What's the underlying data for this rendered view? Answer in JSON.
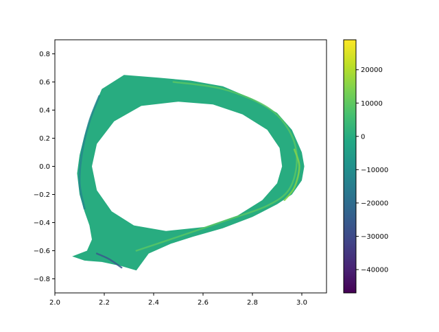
{
  "chart_data": {
    "type": "heatmap",
    "title": "",
    "xlabel": "",
    "ylabel": "",
    "xlim": [
      2.0,
      3.1
    ],
    "ylim": [
      -0.9,
      0.9
    ],
    "grid": false,
    "colormap": "viridis",
    "x_ticks": [
      {
        "value": 2.0,
        "label": "2.0"
      },
      {
        "value": 2.2,
        "label": "2.2"
      },
      {
        "value": 2.4,
        "label": "2.4"
      },
      {
        "value": 2.6,
        "label": "2.6"
      },
      {
        "value": 2.8,
        "label": "2.8"
      },
      {
        "value": 3.0,
        "label": "3.0"
      }
    ],
    "y_ticks": [
      {
        "value": -0.8,
        "label": "−0.8"
      },
      {
        "value": -0.6,
        "label": "−0.6"
      },
      {
        "value": -0.4,
        "label": "−0.4"
      },
      {
        "value": -0.2,
        "label": "−0.2"
      },
      {
        "value": 0.0,
        "label": "0.0"
      },
      {
        "value": 0.2,
        "label": "0.2"
      },
      {
        "value": 0.4,
        "label": "0.4"
      },
      {
        "value": 0.6,
        "label": "0.6"
      },
      {
        "value": 0.8,
        "label": "0.8"
      }
    ],
    "colorbar": {
      "range": [
        -47000,
        29000
      ],
      "ticks": [
        {
          "value": -40000,
          "label": "−40000"
        },
        {
          "value": -30000,
          "label": "−30000"
        },
        {
          "value": -20000,
          "label": "−20000"
        },
        {
          "value": -10000,
          "label": "−10000"
        },
        {
          "value": 0,
          "label": "0"
        },
        {
          "value": 10000,
          "label": "10000"
        },
        {
          "value": 20000,
          "label": "20000"
        }
      ]
    },
    "field_regions": {
      "background_value": 0,
      "outer_boundary": [
        [
          2.07,
          -0.64
        ],
        [
          2.13,
          -0.6
        ],
        [
          2.15,
          -0.52
        ],
        [
          2.14,
          -0.42
        ],
        [
          2.12,
          -0.32
        ],
        [
          2.1,
          -0.2
        ],
        [
          2.09,
          -0.05
        ],
        [
          2.1,
          0.08
        ],
        [
          2.12,
          0.22
        ],
        [
          2.15,
          0.38
        ],
        [
          2.19,
          0.55
        ],
        [
          2.28,
          0.65
        ],
        [
          2.42,
          0.63
        ],
        [
          2.55,
          0.61
        ],
        [
          2.68,
          0.57
        ],
        [
          2.8,
          0.48
        ],
        [
          2.9,
          0.38
        ],
        [
          2.96,
          0.26
        ],
        [
          3.0,
          0.1
        ],
        [
          3.01,
          0.0
        ],
        [
          3.0,
          -0.1
        ],
        [
          2.96,
          -0.2
        ],
        [
          2.9,
          -0.27
        ],
        [
          2.8,
          -0.36
        ],
        [
          2.68,
          -0.44
        ],
        [
          2.56,
          -0.5
        ],
        [
          2.47,
          -0.55
        ],
        [
          2.38,
          -0.62
        ],
        [
          2.33,
          -0.74
        ],
        [
          2.27,
          -0.71
        ],
        [
          2.19,
          -0.68
        ],
        [
          2.12,
          -0.67
        ]
      ],
      "inner_hole": [
        [
          2.15,
          0.0
        ],
        [
          2.17,
          0.16
        ],
        [
          2.24,
          0.32
        ],
        [
          2.35,
          0.43
        ],
        [
          2.5,
          0.46
        ],
        [
          2.64,
          0.44
        ],
        [
          2.76,
          0.37
        ],
        [
          2.86,
          0.26
        ],
        [
          2.91,
          0.13
        ],
        [
          2.92,
          0.0
        ],
        [
          2.9,
          -0.12
        ],
        [
          2.84,
          -0.24
        ],
        [
          2.74,
          -0.35
        ],
        [
          2.61,
          -0.43
        ],
        [
          2.45,
          -0.46
        ],
        [
          2.32,
          -0.42
        ],
        [
          2.23,
          -0.32
        ],
        [
          2.17,
          -0.17
        ]
      ],
      "features": [
        {
          "value": -12000,
          "points": [
            [
              2.12,
              -0.3
            ],
            [
              2.1,
              -0.12
            ],
            [
              2.11,
              0.1
            ],
            [
              2.14,
              0.32
            ],
            [
              2.18,
              0.5
            ]
          ]
        },
        {
          "value": -26000,
          "points": [
            [
              2.17,
              -0.62
            ],
            [
              2.22,
              -0.66
            ],
            [
              2.27,
              -0.72
            ]
          ]
        },
        {
          "value": 9000,
          "points": [
            [
              2.48,
              0.6
            ],
            [
              2.68,
              0.55
            ],
            [
              2.86,
              0.42
            ],
            [
              2.95,
              0.25
            ],
            [
              2.98,
              0.05
            ],
            [
              2.95,
              -0.16
            ],
            [
              2.86,
              -0.28
            ],
            [
              2.7,
              -0.38
            ],
            [
              2.5,
              -0.5
            ],
            [
              2.33,
              -0.6
            ]
          ]
        },
        {
          "value": 15000,
          "points": [
            [
              2.97,
              0.12
            ],
            [
              2.99,
              0.0
            ],
            [
              2.97,
              -0.15
            ],
            [
              2.93,
              -0.24
            ]
          ]
        }
      ]
    }
  }
}
